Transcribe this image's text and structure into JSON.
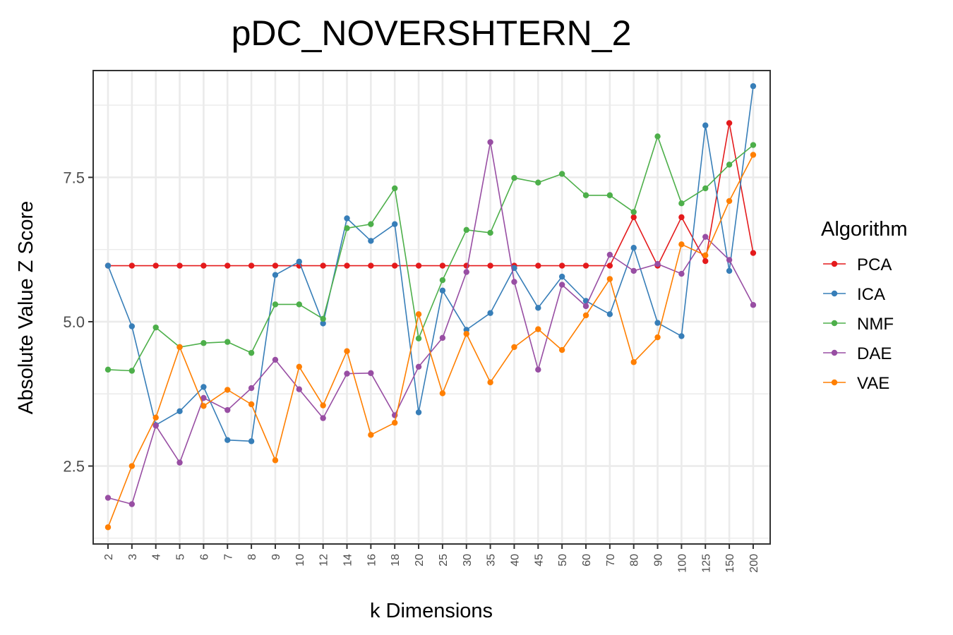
{
  "chart_data": {
    "type": "line",
    "title": "pDC_NOVERSHTERN_2",
    "xlabel": "k Dimensions",
    "ylabel": "Absolute Value Z Score",
    "categories": [
      "2",
      "3",
      "4",
      "5",
      "6",
      "7",
      "8",
      "9",
      "10",
      "12",
      "14",
      "16",
      "18",
      "20",
      "25",
      "30",
      "35",
      "40",
      "45",
      "50",
      "60",
      "70",
      "80",
      "90",
      "100",
      "125",
      "150",
      "200"
    ],
    "ylim": [
      1.15,
      9.35
    ],
    "yticks": [
      "2.5",
      "5.0",
      "7.5"
    ],
    "grid": true,
    "legend_title": "Algorithm",
    "legend_position": "right",
    "series": [
      {
        "name": "PCA",
        "color": "#e41a1c",
        "values": [
          5.97,
          5.97,
          5.97,
          5.97,
          5.97,
          5.97,
          5.97,
          5.97,
          5.97,
          5.97,
          5.97,
          5.97,
          5.97,
          5.97,
          5.97,
          5.97,
          5.97,
          5.97,
          5.97,
          5.97,
          5.97,
          5.97,
          6.81,
          5.97,
          6.81,
          6.05,
          8.44,
          6.19
        ]
      },
      {
        "name": "ICA",
        "color": "#377eb8",
        "values": [
          5.97,
          4.92,
          3.21,
          3.45,
          3.87,
          2.95,
          2.93,
          5.81,
          6.04,
          4.97,
          6.79,
          6.4,
          6.69,
          3.43,
          5.54,
          4.86,
          5.15,
          5.93,
          5.24,
          5.78,
          5.36,
          5.13,
          6.28,
          4.98,
          4.75,
          8.4,
          5.88,
          9.08
        ]
      },
      {
        "name": "NMF",
        "color": "#4daf4a",
        "values": [
          4.17,
          4.15,
          4.9,
          4.56,
          4.63,
          4.65,
          4.46,
          5.3,
          5.3,
          5.05,
          6.62,
          6.69,
          7.31,
          4.71,
          5.72,
          6.59,
          6.54,
          7.49,
          7.41,
          7.56,
          7.19,
          7.19,
          6.9,
          8.21,
          7.05,
          7.31,
          7.72,
          8.06
        ]
      },
      {
        "name": "DAE",
        "color": "#984ea3",
        "values": [
          1.95,
          1.84,
          3.2,
          2.56,
          3.68,
          3.47,
          3.85,
          4.34,
          3.83,
          3.33,
          4.1,
          4.11,
          3.38,
          4.22,
          4.72,
          5.86,
          8.11,
          5.69,
          4.17,
          5.64,
          5.27,
          6.16,
          5.88,
          6.0,
          5.83,
          6.47,
          6.07,
          5.29
        ]
      },
      {
        "name": "VAE",
        "color": "#ff7f00",
        "values": [
          1.44,
          2.5,
          3.34,
          4.56,
          3.54,
          3.82,
          3.57,
          2.6,
          4.22,
          3.55,
          4.49,
          3.04,
          3.25,
          5.13,
          3.76,
          4.79,
          3.95,
          4.56,
          4.87,
          4.51,
          5.11,
          5.74,
          4.3,
          4.73,
          6.34,
          6.15,
          7.09,
          7.89
        ]
      }
    ]
  }
}
